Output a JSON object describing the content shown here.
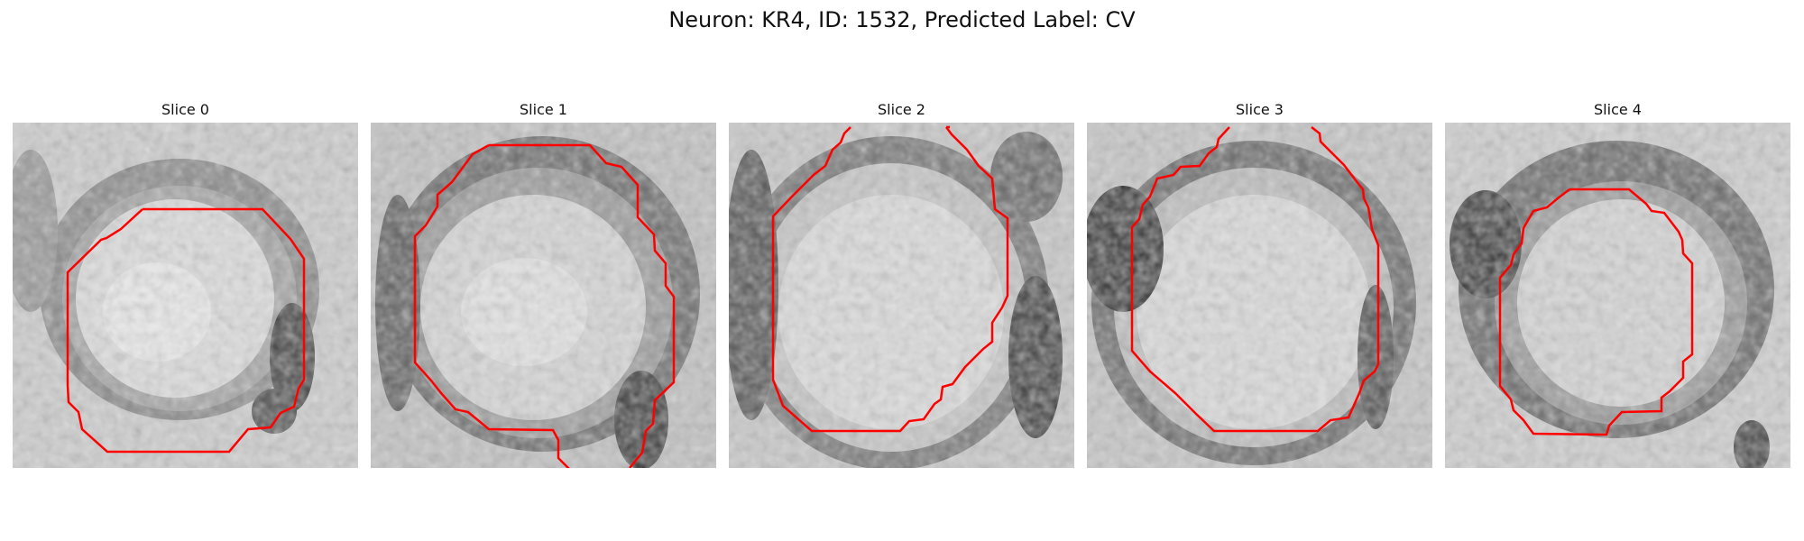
{
  "figure": {
    "title": "Neuron: KR4, ID: 1532, Predicted Label: CV"
  },
  "panels": [
    {
      "label": "Slice 0"
    },
    {
      "label": "Slice 1"
    },
    {
      "label": "Slice 2"
    },
    {
      "label": "Slice 3"
    },
    {
      "label": "Slice 4"
    }
  ],
  "colors": {
    "outline": "#ff0000",
    "image_light": "#f2f2f2",
    "image_dark": "#111111"
  }
}
